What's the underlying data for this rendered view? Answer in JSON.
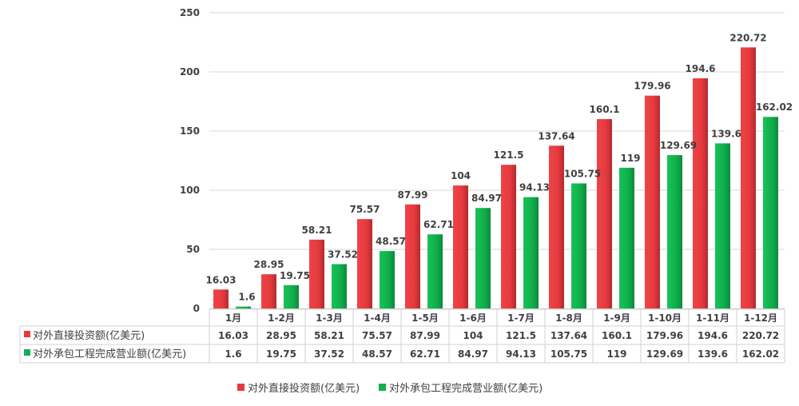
{
  "chart_data": {
    "type": "bar",
    "categories": [
      "1月",
      "1-2月",
      "1-3月",
      "1-4月",
      "1-5月",
      "1-6月",
      "1-7月",
      "1-8月",
      "1-9月",
      "1-10月",
      "1-11月",
      "1-12月"
    ],
    "series": [
      {
        "name": "对外直接投资额(亿美元)",
        "color": "#e8383d",
        "values": [
          16.03,
          28.95,
          58.21,
          75.57,
          87.99,
          104,
          121.5,
          137.64,
          160.1,
          179.96,
          194.6,
          220.72
        ]
      },
      {
        "name": "对外承包工程完成营业额(亿美元)",
        "color": "#12b04f",
        "values": [
          1.6,
          19.75,
          37.52,
          48.57,
          62.71,
          84.97,
          94.13,
          105.75,
          119,
          129.69,
          139.6,
          162.02
        ]
      }
    ],
    "yticks": [
      "0",
      "50",
      "100",
      "150",
      "200",
      "250"
    ],
    "ylim": [
      0,
      250
    ],
    "grid": true,
    "data_table": true,
    "legend": "bottom"
  }
}
